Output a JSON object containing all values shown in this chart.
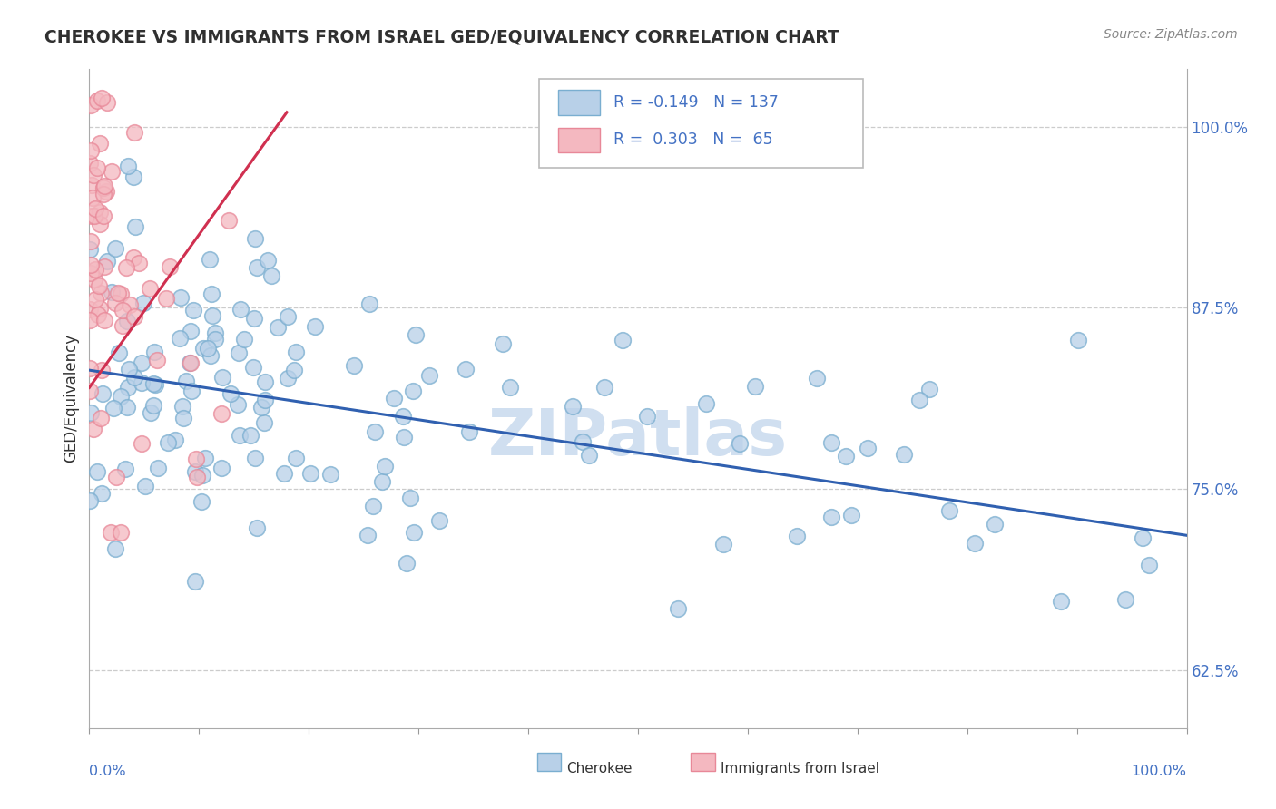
{
  "title": "CHEROKEE VS IMMIGRANTS FROM ISRAEL GED/EQUIVALENCY CORRELATION CHART",
  "source": "Source: ZipAtlas.com",
  "ylabel": "GED/Equivalency",
  "xmin": 0.0,
  "xmax": 1.0,
  "ymin": 0.585,
  "ymax": 1.04,
  "yticks": [
    0.625,
    0.75,
    0.875,
    1.0
  ],
  "ytick_labels": [
    "62.5%",
    "75.0%",
    "87.5%",
    "100.0%"
  ],
  "cherokee_color": "#b8d0e8",
  "cherokee_edge": "#7aaed0",
  "israel_color": "#f4b8c0",
  "israel_edge": "#e88898",
  "cherokee_line_color": "#3060b0",
  "israel_line_color": "#d03050",
  "watermark": "ZIPatlas",
  "watermark_color": "#d0dff0",
  "background_color": "#ffffff",
  "title_color": "#303030",
  "label_color": "#4472c4",
  "grid_color": "#cccccc",
  "cherokee_line_y0": 0.832,
  "cherokee_line_y1": 0.718,
  "israel_line_x0": 0.0,
  "israel_line_x1": 0.18,
  "israel_line_y0": 0.82,
  "israel_line_y1": 1.01
}
